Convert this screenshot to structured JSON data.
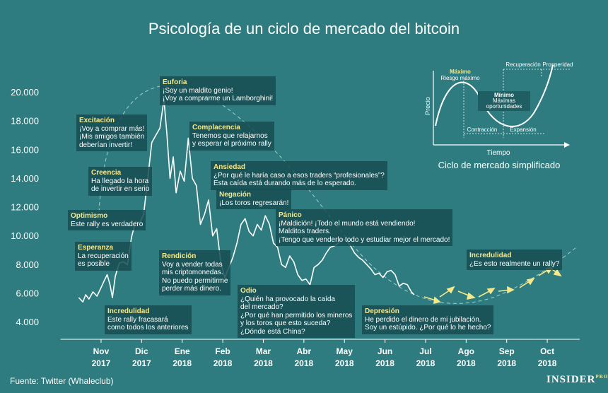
{
  "chart_data": {
    "type": "line",
    "title": "Psicología de un ciclo de mercado del bitcoin",
    "color": "#ffffff",
    "grid": false,
    "x": [
      0.45,
      0.55,
      0.62,
      0.7,
      0.8,
      0.9,
      1.0,
      1.08,
      1.15,
      1.22,
      1.28,
      1.35,
      1.45,
      1.55,
      1.65,
      1.75,
      1.85,
      1.95,
      2.05,
      2.15,
      2.25,
      2.35,
      2.45,
      2.55,
      2.62,
      2.7,
      2.78,
      2.85,
      2.95,
      3.05,
      3.15,
      3.25,
      3.35,
      3.45,
      3.55,
      3.65,
      3.75,
      3.85,
      3.95,
      4.05,
      4.15,
      4.25,
      4.35,
      4.45,
      4.55,
      4.65,
      4.75,
      4.85,
      4.95,
      5.05,
      5.15,
      5.25,
      5.35,
      5.45,
      5.55,
      5.65,
      5.75,
      5.85,
      5.95,
      6.05,
      6.15,
      6.25,
      6.35,
      6.45,
      6.55,
      6.65,
      6.75,
      6.85,
      6.95,
      7.05,
      7.15,
      7.25,
      7.35,
      7.45,
      7.55,
      7.65,
      7.75,
      7.85,
      7.95,
      8.05,
      8.15,
      8.25,
      8.35,
      8.45,
      8.55,
      8.65,
      8.72
    ],
    "values": [
      5700,
      5400,
      5900,
      5600,
      6100,
      5800,
      6400,
      6900,
      7300,
      6600,
      5700,
      7200,
      8100,
      8200,
      8000,
      9900,
      11000,
      10900,
      11500,
      14000,
      16500,
      17000,
      17500,
      19500,
      17200,
      14000,
      15500,
      13000,
      14500,
      13800,
      16800,
      14000,
      13500,
      10800,
      11500,
      12500,
      10000,
      10500,
      8200,
      7100,
      7800,
      8500,
      9500,
      10800,
      11200,
      10300,
      10000,
      10800,
      10400,
      11400,
      10800,
      9500,
      9200,
      8000,
      7800,
      8600,
      8200,
      7300,
      6900,
      7000,
      6600,
      7800,
      8000,
      8300,
      8800,
      9200,
      9300,
      9500,
      9800,
      9700,
      9300,
      8800,
      8500,
      8300,
      8000,
      7700,
      7300,
      7400,
      7100,
      7500,
      7600,
      7300,
      6500,
      6700,
      6600,
      6100,
      5900
    ],
    "xlim": [
      0,
      12.8
    ],
    "xticks": [
      {
        "value": 1,
        "label": "Nov\n2017"
      },
      {
        "value": 2,
        "label": "Dic\n2017"
      },
      {
        "value": 3,
        "label": "Ene\n2018"
      },
      {
        "value": 4,
        "label": "Feb\n2018"
      },
      {
        "value": 5,
        "label": "Mar\n2018"
      },
      {
        "value": 6,
        "label": "Abr\n2018"
      },
      {
        "value": 7,
        "label": "May\n2018"
      },
      {
        "value": 8,
        "label": "Jun\n2018"
      },
      {
        "value": 9,
        "label": "Jul\n2018"
      },
      {
        "value": 10,
        "label": "Ago\n2018"
      },
      {
        "value": 11,
        "label": "Sep\n2018"
      },
      {
        "value": 12,
        "label": "Oct\n2018"
      }
    ],
    "ylim": [
      2800,
      21500
    ],
    "yticks": [
      {
        "value": 4000,
        "label": "4.000"
      },
      {
        "value": 6000,
        "label": "6.000"
      },
      {
        "value": 8000,
        "label": "8.000"
      },
      {
        "value": 10000,
        "label": "10.000"
      },
      {
        "value": 12000,
        "label": "12.000"
      },
      {
        "value": 14000,
        "label": "14.000"
      },
      {
        "value": 16000,
        "label": "16.000"
      },
      {
        "value": 18000,
        "label": "18.000"
      },
      {
        "value": 20000,
        "label": "20.000"
      }
    ],
    "annotations": [
      {
        "title": "Euforia",
        "lines": [
          "¡Soy un maldito genio!",
          "¡Voy a comprarme un Lamborghini!"
        ]
      },
      {
        "title": "Excitación",
        "lines": [
          "¡Voy a comprar más!",
          "¡Mis amigos también",
          "deberían invertir!"
        ]
      },
      {
        "title": "Complacencia",
        "lines": [
          "Tenemos que relajarnos",
          "y esperar el próximo rally"
        ]
      },
      {
        "title": "Creencia",
        "lines": [
          "Ha llegado la hora",
          "de invertir en serio"
        ]
      },
      {
        "title": "Ansiedad",
        "lines": [
          "¿Por qué le haría caso a esos traders “profesionales”?",
          "Esta caída está durando más de lo esperado."
        ]
      },
      {
        "title": "Negación",
        "lines": [
          "¡Los toros regresarán!"
        ]
      },
      {
        "title": "Optimismo",
        "lines": [
          "Este rally es verdadero"
        ]
      },
      {
        "title": "Pánico",
        "lines": [
          "¡Maldición! ¡Todo el mundo está vendiendo!",
          "Malditos traders.",
          "¡Tengo que venderlo todo y estudiar mejor el mercado!"
        ]
      },
      {
        "title": "Esperanza",
        "lines": [
          "La recuperación",
          "es posible"
        ]
      },
      {
        "title": "Rendición",
        "lines": [
          "Voy a vender todas",
          "mis criptomonedas.",
          "No puedo permitirme",
          "perder más dinero."
        ]
      },
      {
        "title": "Incredulidad",
        "lines": [
          "¿Es esto realmente un rally?"
        ]
      },
      {
        "title": "Odio",
        "lines": [
          "¿Quién ha provocado la caída",
          "del mercado?",
          "¿Por qué han permitido los mineros",
          "y los toros que esto suceda?",
          "¿Dónde está China?"
        ]
      },
      {
        "title": "Depresión",
        "lines": [
          "He perdido el dinero de mi jubilación.",
          "Soy un estúpido. ¿Por qué lo he hecho?"
        ]
      },
      {
        "title": "Incredulidad",
        "lines": [
          "Este rally fracasará",
          "como todos los anteriores"
        ]
      }
    ]
  },
  "inset": {
    "title": "Ciclo de mercado simplificado",
    "price": "Precio",
    "time": "Tiempo",
    "max": "Máximo",
    "max_risk": "Riesgo máximo",
    "min": "Mínimo",
    "min_line1": "Máximas",
    "min_line2": "oportunidades",
    "contraction": "Contracción",
    "expansion": "Expansión",
    "recovery": "Recuperación",
    "prosperity": "Prosperidad"
  },
  "source": "Fuente: Twitter (Whaleclub)",
  "brand": "INSIDER",
  "brand_sub": "PRO"
}
